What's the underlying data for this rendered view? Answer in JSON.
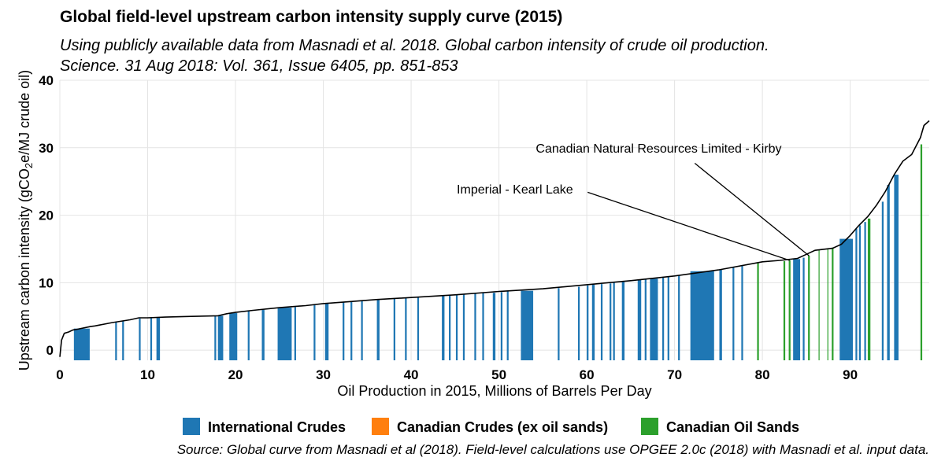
{
  "chart_data": {
    "type": "bar",
    "title": "Global field-level upstream carbon intensity supply curve (2015)",
    "subtitle_lines": [
      "Using publicly available data from Masnadi et al. 2018. Global carbon intensity of crude oil production.",
      "Science. 31 Aug 2018: Vol. 361, Issue 6405, pp. 851-853"
    ],
    "xlabel": "Oil Production in 2015, Millions of Barrels Per Day",
    "ylabel": "Upstream carbon intensity (gCO2e/MJ crude oil)",
    "xlim": [
      0,
      99
    ],
    "ylim": [
      -1.5,
      40
    ],
    "x_ticks": [
      0,
      10,
      20,
      30,
      40,
      50,
      60,
      70,
      80,
      90
    ],
    "y_ticks": [
      0,
      10,
      20,
      30,
      40
    ],
    "grid": true,
    "legend_position": "bottom",
    "caption": "Source: Global curve from Masnadi et al (2018). Field-level calculations use OPGEE 2.0c (2018) with Masnadi et al. input data.",
    "series": [
      {
        "name": "International Crudes",
        "color": "#1f77b4"
      },
      {
        "name": "Canadian Crudes (ex oil sands)",
        "color": "#ff7f0e"
      },
      {
        "name": "Canadian Oil Sands",
        "color": "#2ca02c"
      }
    ],
    "supply_curve": {
      "x": [
        0,
        0.2,
        0.5,
        1,
        1.5,
        2,
        3.5,
        4,
        6,
        8,
        9,
        10,
        12,
        15,
        18,
        19,
        20,
        22,
        25,
        28,
        30,
        33,
        36,
        40,
        45,
        50,
        55,
        60,
        65,
        70,
        75,
        80,
        82,
        84,
        85,
        86,
        88,
        89,
        90,
        91,
        92,
        93,
        94,
        95,
        96,
        97,
        98,
        98.4,
        99
      ],
      "y": [
        -1,
        1.5,
        2.5,
        2.7,
        3.0,
        3.1,
        3.5,
        3.6,
        4.1,
        4.5,
        4.8,
        4.8,
        4.9,
        5.0,
        5.1,
        5.4,
        5.6,
        5.9,
        6.3,
        6.6,
        6.9,
        7.2,
        7.5,
        7.8,
        8.2,
        8.7,
        9.1,
        9.7,
        10.3,
        11.0,
        11.9,
        13.1,
        13.3,
        13.6,
        14.2,
        14.8,
        15.1,
        15.7,
        17.0,
        18.5,
        19.8,
        21.5,
        23.5,
        26.0,
        28.0,
        29.0,
        31.5,
        33.3,
        34.0
      ]
    },
    "bars": [
      {
        "x0": 1.6,
        "x1": 3.4,
        "y": 3.2,
        "group": 0
      },
      {
        "x0": 6.3,
        "x1": 6.5,
        "y": 4.2,
        "group": 0
      },
      {
        "x0": 7.1,
        "x1": 7.3,
        "y": 4.3,
        "group": 0
      },
      {
        "x0": 9.0,
        "x1": 9.2,
        "y": 4.7,
        "group": 0
      },
      {
        "x0": 10.3,
        "x1": 10.5,
        "y": 4.8,
        "group": 0
      },
      {
        "x0": 11.0,
        "x1": 11.4,
        "y": 4.9,
        "group": 0
      },
      {
        "x0": 17.6,
        "x1": 17.8,
        "y": 5.1,
        "group": 0
      },
      {
        "x0": 18.0,
        "x1": 18.6,
        "y": 5.1,
        "group": 0
      },
      {
        "x0": 19.3,
        "x1": 20.2,
        "y": 5.5,
        "group": 0
      },
      {
        "x0": 21.4,
        "x1": 21.6,
        "y": 5.8,
        "group": 0
      },
      {
        "x0": 23.0,
        "x1": 23.3,
        "y": 6.0,
        "group": 0
      },
      {
        "x0": 24.8,
        "x1": 26.4,
        "y": 6.3,
        "group": 0
      },
      {
        "x0": 26.7,
        "x1": 26.9,
        "y": 6.4,
        "group": 0
      },
      {
        "x0": 28.9,
        "x1": 29.1,
        "y": 6.7,
        "group": 0
      },
      {
        "x0": 30.2,
        "x1": 30.6,
        "y": 6.9,
        "group": 0
      },
      {
        "x0": 32.2,
        "x1": 32.4,
        "y": 7.1,
        "group": 0
      },
      {
        "x0": 33.1,
        "x1": 33.3,
        "y": 7.2,
        "group": 0
      },
      {
        "x0": 34.3,
        "x1": 34.5,
        "y": 7.3,
        "group": 0
      },
      {
        "x0": 36.1,
        "x1": 36.4,
        "y": 7.5,
        "group": 0
      },
      {
        "x0": 38.0,
        "x1": 38.2,
        "y": 7.7,
        "group": 0
      },
      {
        "x0": 39.3,
        "x1": 39.5,
        "y": 7.8,
        "group": 0
      },
      {
        "x0": 40.7,
        "x1": 40.9,
        "y": 7.9,
        "group": 0
      },
      {
        "x0": 43.5,
        "x1": 43.8,
        "y": 8.0,
        "group": 0
      },
      {
        "x0": 44.3,
        "x1": 44.5,
        "y": 8.1,
        "group": 0
      },
      {
        "x0": 45.1,
        "x1": 45.3,
        "y": 8.2,
        "group": 0
      },
      {
        "x0": 45.9,
        "x1": 46.1,
        "y": 8.3,
        "group": 0
      },
      {
        "x0": 47.2,
        "x1": 47.4,
        "y": 8.4,
        "group": 0
      },
      {
        "x0": 48.1,
        "x1": 48.3,
        "y": 8.5,
        "group": 0
      },
      {
        "x0": 49.3,
        "x1": 49.6,
        "y": 8.5,
        "group": 0
      },
      {
        "x0": 50.2,
        "x1": 50.4,
        "y": 8.6,
        "group": 0
      },
      {
        "x0": 50.9,
        "x1": 51.1,
        "y": 8.7,
        "group": 0
      },
      {
        "x0": 52.5,
        "x1": 53.9,
        "y": 8.8,
        "group": 0
      },
      {
        "x0": 56.7,
        "x1": 56.9,
        "y": 9.2,
        "group": 0
      },
      {
        "x0": 59.0,
        "x1": 59.2,
        "y": 9.4,
        "group": 0
      },
      {
        "x0": 60.0,
        "x1": 60.2,
        "y": 9.6,
        "group": 0
      },
      {
        "x0": 60.6,
        "x1": 60.9,
        "y": 9.7,
        "group": 0
      },
      {
        "x0": 61.6,
        "x1": 61.8,
        "y": 9.8,
        "group": 0
      },
      {
        "x0": 62.6,
        "x1": 62.8,
        "y": 9.9,
        "group": 0
      },
      {
        "x0": 63.0,
        "x1": 63.2,
        "y": 10.0,
        "group": 0
      },
      {
        "x0": 64.0,
        "x1": 64.3,
        "y": 10.2,
        "group": 0
      },
      {
        "x0": 65.8,
        "x1": 66.2,
        "y": 10.4,
        "group": 0
      },
      {
        "x0": 66.6,
        "x1": 66.8,
        "y": 10.5,
        "group": 0
      },
      {
        "x0": 67.2,
        "x1": 68.1,
        "y": 10.6,
        "group": 0
      },
      {
        "x0": 68.6,
        "x1": 68.8,
        "y": 10.8,
        "group": 0
      },
      {
        "x0": 69.2,
        "x1": 69.4,
        "y": 10.9,
        "group": 0
      },
      {
        "x0": 70.4,
        "x1": 70.6,
        "y": 11.1,
        "group": 0
      },
      {
        "x0": 71.8,
        "x1": 74.5,
        "y": 11.7,
        "group": 0
      },
      {
        "x0": 75.1,
        "x1": 75.4,
        "y": 12.0,
        "group": 0
      },
      {
        "x0": 76.6,
        "x1": 76.8,
        "y": 12.3,
        "group": 0
      },
      {
        "x0": 77.6,
        "x1": 77.8,
        "y": 12.5,
        "group": 0
      },
      {
        "x0": 79.4,
        "x1": 79.6,
        "y": 13.0,
        "group": 2
      },
      {
        "x0": 82.4,
        "x1": 82.6,
        "y": 13.2,
        "group": 2
      },
      {
        "x0": 83.0,
        "x1": 83.2,
        "y": 13.3,
        "group": 2
      },
      {
        "x0": 83.5,
        "x1": 84.3,
        "y": 13.5,
        "group": 0
      },
      {
        "x0": 84.6,
        "x1": 84.8,
        "y": 13.7,
        "group": 0
      },
      {
        "x0": 85.2,
        "x1": 85.4,
        "y": 14.0,
        "group": 2
      },
      {
        "x0": 86.4,
        "x1": 86.5,
        "y": 14.9,
        "group": 2
      },
      {
        "x0": 87.4,
        "x1": 87.5,
        "y": 15.0,
        "group": 2
      },
      {
        "x0": 87.9,
        "x1": 88.1,
        "y": 15.2,
        "group": 2
      },
      {
        "x0": 88.8,
        "x1": 90.3,
        "y": 16.5,
        "group": 0
      },
      {
        "x0": 90.6,
        "x1": 90.8,
        "y": 18.0,
        "group": 0
      },
      {
        "x0": 91.0,
        "x1": 91.2,
        "y": 18.5,
        "group": 0
      },
      {
        "x0": 91.6,
        "x1": 91.8,
        "y": 19.0,
        "group": 0
      },
      {
        "x0": 92.0,
        "x1": 92.3,
        "y": 19.5,
        "group": 2
      },
      {
        "x0": 93.6,
        "x1": 93.8,
        "y": 22.0,
        "group": 0
      },
      {
        "x0": 94.2,
        "x1": 94.5,
        "y": 24.5,
        "group": 0
      },
      {
        "x0": 95.0,
        "x1": 95.5,
        "y": 26.0,
        "group": 0
      },
      {
        "x0": 98.0,
        "x1": 98.2,
        "y": 30.5,
        "group": 2
      }
    ],
    "annotations": [
      {
        "text": "Canadian Natural Resources Limited - Kirby",
        "x": 54.2,
        "y": 29.3,
        "anchor": "start",
        "target_x": 85.3,
        "target_y": 14.0,
        "line_from_x": 72.3,
        "line_from_y": 27.7
      },
      {
        "text": "Imperial - Kearl Lake",
        "x": 45.2,
        "y": 23.2,
        "anchor": "start",
        "target_x": 83.1,
        "target_y": 13.3,
        "line_from_x": 60.1,
        "line_from_y": 23.4
      }
    ]
  }
}
